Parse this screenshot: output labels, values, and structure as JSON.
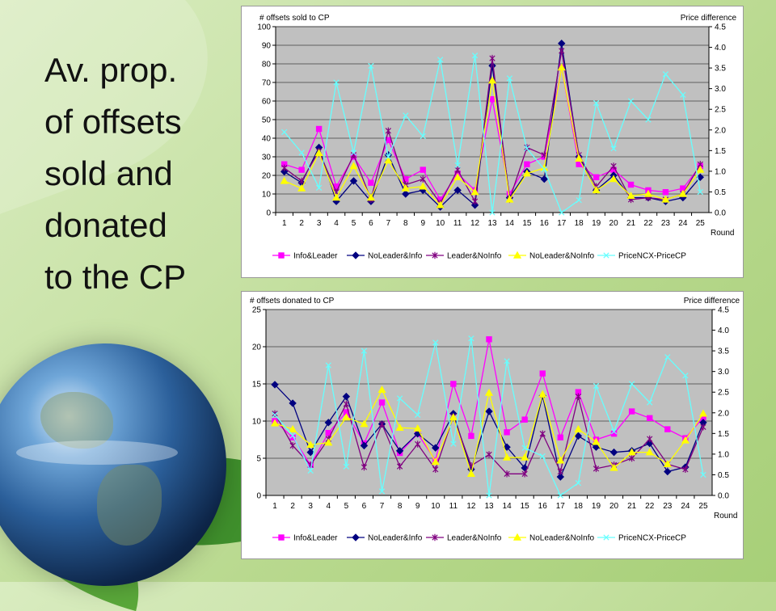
{
  "title_lines": [
    "Av. prop.",
    "of offsets",
    "sold and",
    "donated",
    "to the CP"
  ],
  "colors": {
    "Info&Leader": "#ff00ff",
    "NoLeader&Info": "#000080",
    "Leader&NoInfo": "#800080",
    "NoLeader&NoInfo": "#ffff00",
    "PriceNCX-PriceCP": "#66ffff"
  },
  "chart_data": [
    {
      "type": "line",
      "title": "",
      "ylabel": "# offsets sold to CP",
      "y2label": "Price difference",
      "xlabel": "Round",
      "x": [
        1,
        2,
        3,
        4,
        5,
        6,
        7,
        8,
        9,
        10,
        11,
        12,
        13,
        14,
        15,
        16,
        17,
        18,
        19,
        20,
        21,
        22,
        23,
        24,
        25
      ],
      "ylim": [
        0,
        100
      ],
      "yticks": [
        0,
        10,
        20,
        30,
        40,
        50,
        60,
        70,
        80,
        90,
        100
      ],
      "y2lim": [
        0,
        4.5
      ],
      "y2ticks": [
        "0.0",
        "0.5",
        "1.0",
        "1.5",
        "2.0",
        "2.5",
        "3.0",
        "3.5",
        "4.0",
        "4.5"
      ],
      "grid": true,
      "legend": "bottom",
      "series": [
        {
          "name": "Info&Leader",
          "axis": "left",
          "marker": "square",
          "values": [
            26,
            23,
            45,
            14,
            30,
            16,
            39,
            18,
            23,
            7,
            21,
            12,
            61,
            10,
            26,
            30,
            78,
            26,
            19,
            23,
            15,
            12,
            11,
            13,
            25
          ]
        },
        {
          "name": "NoLeader&Info",
          "axis": "left",
          "marker": "diamond",
          "values": [
            22,
            16,
            35,
            6,
            17,
            6,
            31,
            10,
            12,
            3,
            12,
            4,
            79,
            8,
            22,
            18,
            91,
            30,
            12,
            20,
            8,
            8,
            6,
            8,
            19
          ]
        },
        {
          "name": "Leader&NoInfo",
          "axis": "left",
          "marker": "star",
          "values": [
            24,
            17,
            33,
            11,
            31,
            7,
            44,
            15,
            18,
            5,
            23,
            6,
            83,
            7,
            35,
            31,
            87,
            31,
            14,
            25,
            7,
            8,
            7,
            10,
            26
          ]
        },
        {
          "name": "NoLeader&NoInfo",
          "axis": "left",
          "marker": "triangle",
          "values": [
            17,
            13,
            32,
            8,
            25,
            8,
            28,
            13,
            14,
            4,
            19,
            11,
            71,
            7,
            21,
            24,
            78,
            29,
            12,
            18,
            9,
            10,
            7,
            10,
            23
          ]
        },
        {
          "name": "PriceNCX-PriceCP",
          "axis": "right",
          "marker": "x",
          "values": [
            1.95,
            1.45,
            0.6,
            3.15,
            1.45,
            3.55,
            1.35,
            2.35,
            1.85,
            3.7,
            1.15,
            3.8,
            0.0,
            3.25,
            1.55,
            1.05,
            0.0,
            0.3,
            2.65,
            1.55,
            2.7,
            2.25,
            3.35,
            2.85,
            0.5
          ]
        }
      ]
    },
    {
      "type": "line",
      "title": "",
      "ylabel": "# offsets donated to CP",
      "y2label": "Price difference",
      "xlabel": "Round",
      "x": [
        1,
        2,
        3,
        4,
        5,
        6,
        7,
        8,
        9,
        10,
        11,
        12,
        13,
        14,
        15,
        16,
        17,
        18,
        19,
        20,
        21,
        22,
        23,
        24,
        25
      ],
      "ylim": [
        0,
        25
      ],
      "yticks": [
        0,
        5,
        10,
        15,
        20,
        25
      ],
      "y2lim": [
        0,
        4.5
      ],
      "y2ticks": [
        "0.0",
        "0.5",
        "1.0",
        "1.5",
        "2.0",
        "2.5",
        "3.0",
        "3.5",
        "4.0",
        "4.5"
      ],
      "grid": true,
      "legend": "bottom",
      "series": [
        {
          "name": "Info&Leader",
          "axis": "left",
          "marker": "square",
          "values": [
            10,
            7.8,
            4.1,
            8.4,
            11.2,
            7,
            12.5,
            5.7,
            8.3,
            4.7,
            15,
            8,
            21,
            8.5,
            10.2,
            16.4,
            7.8,
            13.9,
            7.5,
            8.3,
            11.3,
            10.4,
            8.9,
            7.7,
            10.5
          ]
        },
        {
          "name": "NoLeader&Info",
          "axis": "left",
          "marker": "diamond",
          "values": [
            14.9,
            12.4,
            5.8,
            9.8,
            13.3,
            6.7,
            9.6,
            6,
            8.3,
            6.4,
            11,
            3.5,
            11.3,
            6.5,
            3.7,
            13.4,
            2.5,
            8,
            6.5,
            5.8,
            6,
            7,
            3.2,
            3.8,
            9.8
          ]
        },
        {
          "name": "Leader&NoInfo",
          "axis": "left",
          "marker": "star",
          "values": [
            11,
            6.7,
            4.1,
            7.6,
            12.3,
            3.8,
            9.6,
            3.9,
            6.9,
            3.5,
            10.6,
            4,
            5.5,
            2.9,
            2.9,
            8.3,
            3.2,
            13.3,
            3.6,
            4.1,
            5,
            7.6,
            4.2,
            3.5,
            9.2
          ]
        },
        {
          "name": "NoLeader&NoInfo",
          "axis": "left",
          "marker": "triangle",
          "values": [
            9.7,
            8.9,
            6.8,
            7.1,
            10.5,
            9.6,
            14.2,
            9.1,
            9,
            4.5,
            10.5,
            2.9,
            13.8,
            5.1,
            5.1,
            13.6,
            4.7,
            8.9,
            7.2,
            3.7,
            5.8,
            5.8,
            4.2,
            7.4,
            11
          ]
        },
        {
          "name": "PriceNCX-PriceCP",
          "axis": "right",
          "marker": "x",
          "values": [
            1.95,
            1.45,
            0.6,
            3.15,
            0.7,
            3.5,
            0.1,
            2.35,
            1.95,
            3.7,
            1.25,
            3.8,
            0.0,
            3.25,
            1.15,
            0.95,
            0.0,
            0.3,
            2.65,
            1.55,
            2.7,
            2.25,
            3.35,
            2.9,
            0.5
          ]
        }
      ]
    }
  ]
}
